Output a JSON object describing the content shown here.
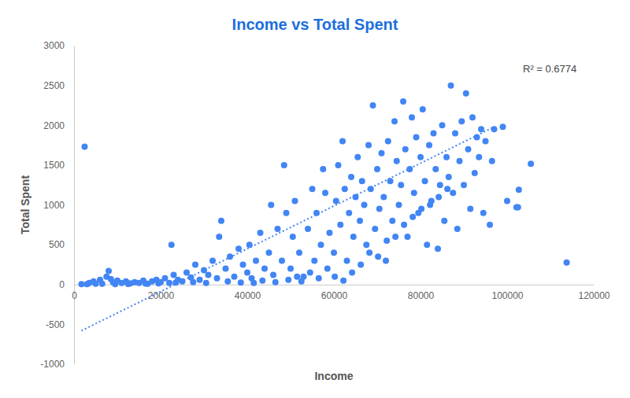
{
  "chart_data": {
    "type": "scatter",
    "title": "Income vs Total Spent",
    "x_label": "Income",
    "y_label": "Total Spent",
    "annotations": [
      "R² = 0.6774"
    ],
    "xlim": [
      0,
      120000
    ],
    "xticks": [
      0,
      20000,
      40000,
      60000,
      80000,
      100000,
      120000
    ],
    "ylim": [
      -1000,
      3000
    ],
    "yticks": [
      -1000,
      -500,
      0,
      500,
      1000,
      1500,
      2000,
      2500,
      3000
    ],
    "grid": false,
    "series": [
      {
        "type": "scatter",
        "marker": "circle",
        "color": "#4285f4",
        "x": [
          1730,
          2447,
          3000,
          3500,
          4500,
          5000,
          6000,
          6500,
          7500,
          8000,
          8500,
          9000,
          9500,
          10000,
          11000,
          12000,
          12500,
          13000,
          14000,
          15000,
          16000,
          16500,
          17000,
          18000,
          19000,
          19500,
          20000,
          21000,
          22000,
          22500,
          23000,
          23500,
          24000,
          25000,
          26000,
          27000,
          27500,
          28000,
          29000,
          30000,
          30500,
          31000,
          32000,
          33000,
          33500,
          34000,
          35000,
          35500,
          36000,
          37000,
          38000,
          38500,
          39000,
          40000,
          40500,
          41000,
          41500,
          42000,
          43000,
          43500,
          44000,
          45000,
          45500,
          46000,
          46500,
          47000,
          48000,
          48500,
          49000,
          49500,
          50000,
          50500,
          51000,
          51500,
          52000,
          52500,
          53000,
          54000,
          54500,
          55000,
          55500,
          56000,
          56500,
          57000,
          57500,
          58000,
          58500,
          59000,
          60000,
          60200,
          60500,
          61000,
          61500,
          62000,
          62200,
          62500,
          63000,
          63500,
          64000,
          64200,
          64500,
          65000,
          65500,
          66000,
          66200,
          66500,
          67000,
          67500,
          68000,
          68200,
          68500,
          69000,
          69500,
          70000,
          70200,
          70500,
          71000,
          71500,
          72000,
          72200,
          72500,
          73000,
          73500,
          74000,
          74200,
          74500,
          75000,
          75500,
          76000,
          76200,
          76500,
          77000,
          77500,
          78000,
          78200,
          78500,
          79000,
          79500,
          80000,
          80200,
          80500,
          81000,
          81500,
          82000,
          82200,
          82500,
          83000,
          83500,
          84000,
          84200,
          84500,
          85000,
          85500,
          86000,
          86200,
          86500,
          87000,
          87500,
          88000,
          88500,
          89000,
          89500,
          90000,
          90500,
          91000,
          91500,
          92000,
          92500,
          93000,
          93500,
          94000,
          94500,
          95000,
          96000,
          96500,
          97000,
          99000,
          100000,
          102160,
          102500,
          102692,
          105471,
          113734
        ],
        "values": [
          6,
          1730,
          5,
          20,
          40,
          10,
          60,
          10,
          100,
          170,
          70,
          30,
          5,
          50,
          20,
          40,
          8,
          15,
          30,
          20,
          50,
          12,
          10,
          40,
          60,
          15,
          30,
          80,
          20,
          500,
          120,
          25,
          60,
          40,
          150,
          90,
          30,
          250,
          60,
          180,
          20,
          120,
          300,
          80,
          600,
          800,
          200,
          40,
          350,
          100,
          450,
          25,
          250,
          150,
          500,
          80,
          20,
          300,
          650,
          50,
          200,
          400,
          1000,
          120,
          30,
          700,
          300,
          1500,
          900,
          60,
          200,
          600,
          1050,
          100,
          400,
          40,
          100,
          700,
          150,
          1200,
          300,
          900,
          80,
          500,
          1450,
          1150,
          200,
          650,
          400,
          100,
          1050,
          1500,
          750,
          1800,
          50,
          1200,
          300,
          900,
          1350,
          150,
          600,
          1100,
          1600,
          800,
          250,
          1300,
          1000,
          500,
          1750,
          400,
          1200,
          2250,
          700,
          1450,
          350,
          950,
          1650,
          1100,
          300,
          550,
          1800,
          1300,
          800,
          2050,
          600,
          1550,
          1000,
          1250,
          2300,
          750,
          1700,
          600,
          1450,
          2100,
          850,
          1150,
          1850,
          900,
          1600,
          950,
          2200,
          1300,
          500,
          1750,
          1000,
          1050,
          1900,
          1450,
          450,
          1100,
          1250,
          2000,
          800,
          1600,
          1200,
          1350,
          2500,
          1150,
          1900,
          700,
          1550,
          2050,
          1250,
          2400,
          1700,
          950,
          2100,
          1400,
          1850,
          1600,
          1950,
          900,
          1800,
          750,
          1550,
          1950,
          1980,
          1050,
          970,
          970,
          1190,
          1515,
          277
        ]
      },
      {
        "type": "line",
        "line_style": "dotted",
        "color": "#4285f4",
        "x": [
          1700,
          97000
        ],
        "values": [
          -580,
          1980
        ]
      }
    ]
  }
}
